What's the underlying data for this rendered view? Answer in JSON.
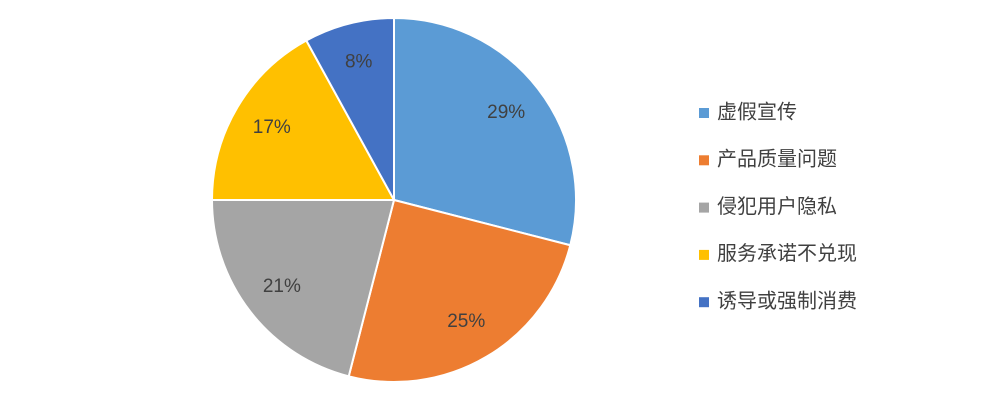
{
  "chart_data": {
    "type": "pie",
    "categories": [
      "虚假宣传",
      "产品质量问题",
      "侵犯用户隐私",
      "服务承诺不兑现",
      "诱导或强制消费"
    ],
    "values": [
      29,
      25,
      21,
      17,
      8
    ],
    "value_labels": [
      "29%",
      "25%",
      "21%",
      "17%",
      "8%"
    ],
    "colors": [
      "#5b9bd5",
      "#ed7d31",
      "#a5a5a5",
      "#ffc000",
      "#4472c4"
    ],
    "legend": "right"
  }
}
